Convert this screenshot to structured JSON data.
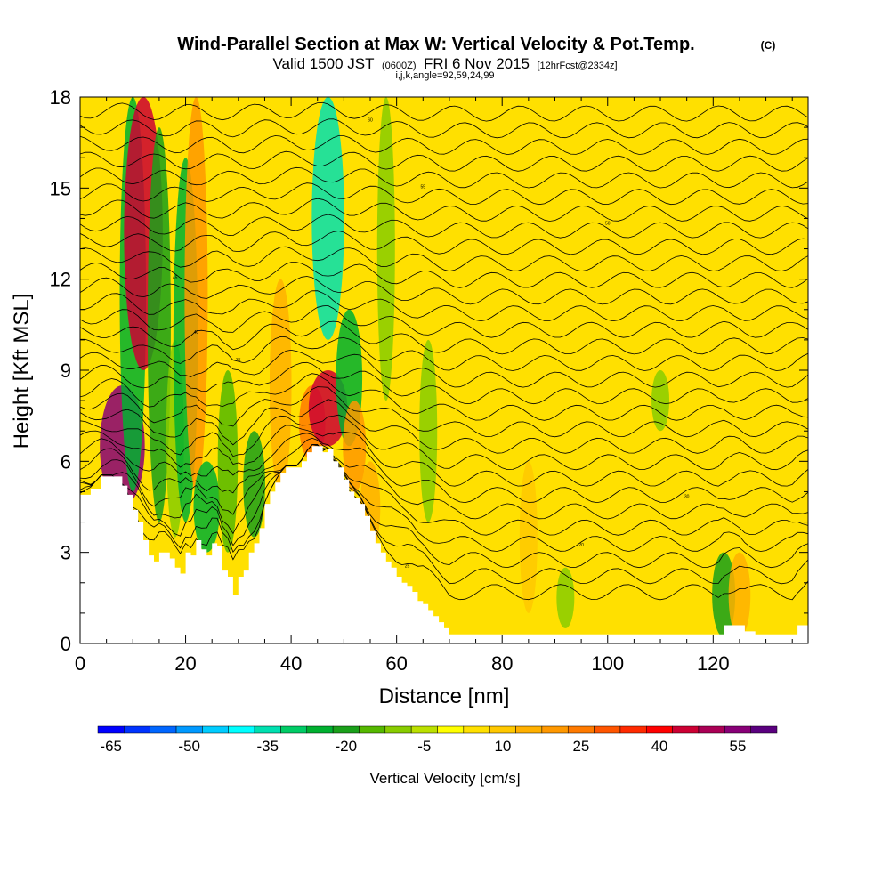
{
  "chart_data": {
    "type": "heatmap",
    "title": "Wind-Parallel Section at Max W: Vertical Velocity & Pot.Temp.",
    "title_mark": "(C)",
    "subtitle": {
      "valid_prefix": "Valid 1500 JST",
      "utc": "(0600Z)",
      "date": "FRI 6 Nov 2015",
      "fcst": "[12hrFcst@2334z]"
    },
    "params": "i,j,k,angle=92,59,24,99",
    "xlabel": "Distance [nm]",
    "ylabel": "Height [Kft MSL]",
    "xlim": [
      0,
      138
    ],
    "ylim": [
      0,
      18
    ],
    "xticks": [
      "0",
      "20",
      "40",
      "60",
      "80",
      "100",
      "120"
    ],
    "yticks": [
      "0",
      "3",
      "6",
      "9",
      "12",
      "15",
      "18"
    ],
    "colorbar": {
      "label": "Vertical Velocity [cm/s]",
      "tick_labels": [
        "-65",
        "-50",
        "-35",
        "-20",
        "-5",
        "10",
        "25",
        "40",
        "55"
      ],
      "levels": [
        -65,
        -60,
        -55,
        -50,
        -45,
        -40,
        -35,
        -30,
        -25,
        -20,
        -15,
        -10,
        -5,
        0,
        5,
        10,
        15,
        20,
        25,
        30,
        35,
        40,
        45,
        50,
        55,
        60
      ],
      "colors": [
        "#0000ff",
        "#0033ff",
        "#0066ff",
        "#0099ff",
        "#00ccff",
        "#00ffff",
        "#00e0b0",
        "#00cc66",
        "#00b030",
        "#1aa01a",
        "#55b800",
        "#88cc00",
        "#bbe000",
        "#ffff00",
        "#ffe000",
        "#ffc800",
        "#ffb000",
        "#ff9800",
        "#ff7a00",
        "#ff5500",
        "#ff2a00",
        "#ff0000",
        "#cc0033",
        "#aa0055",
        "#880077",
        "#5a007f"
      ]
    },
    "background_w": 5,
    "vertical_velocity_features": [
      {
        "x": 8,
        "zmin": 4.5,
        "zmax": 8.5,
        "w": 55
      },
      {
        "x": 10,
        "zmin": 5,
        "zmax": 18,
        "w": -25
      },
      {
        "x": 12,
        "zmin": 9,
        "zmax": 18,
        "w": 45
      },
      {
        "x": 15,
        "zmin": 4,
        "zmax": 17,
        "w": -20
      },
      {
        "x": 18,
        "zmin": 3.5,
        "zmax": 10,
        "w": -10
      },
      {
        "x": 20,
        "zmin": 4,
        "zmax": 16,
        "w": -22
      },
      {
        "x": 22,
        "zmin": 5,
        "zmax": 18,
        "w": 20
      },
      {
        "x": 24,
        "zmin": 3,
        "zmax": 6,
        "w": -25
      },
      {
        "x": 28,
        "zmin": 3,
        "zmax": 9,
        "w": -15
      },
      {
        "x": 33,
        "zmin": 3.5,
        "zmax": 7,
        "w": -18
      },
      {
        "x": 38,
        "zmin": 5,
        "zmax": 12,
        "w": 18
      },
      {
        "x": 44,
        "zmin": 6,
        "zmax": 8.5,
        "w": 25
      },
      {
        "x": 47,
        "zmin": 6.5,
        "zmax": 9,
        "w": 45
      },
      {
        "x": 47,
        "zmin": 10,
        "zmax": 18,
        "w": -35
      },
      {
        "x": 51,
        "zmin": 6.5,
        "zmax": 11,
        "w": -25
      },
      {
        "x": 52,
        "zmin": 5,
        "zmax": 8,
        "w": 20
      },
      {
        "x": 55,
        "zmin": 3,
        "zmax": 6,
        "w": 15
      },
      {
        "x": 58,
        "zmin": 8,
        "zmax": 18,
        "w": -8
      },
      {
        "x": 66,
        "zmin": 4,
        "zmax": 10,
        "w": -6
      },
      {
        "x": 85,
        "zmin": 1,
        "zmax": 6,
        "w": 10
      },
      {
        "x": 92,
        "zmin": 0.5,
        "zmax": 2.5,
        "w": -8
      },
      {
        "x": 110,
        "zmin": 7,
        "zmax": 9,
        "w": -6
      },
      {
        "x": 122,
        "zmin": 0.2,
        "zmax": 3,
        "w": -20
      },
      {
        "x": 125,
        "zmin": 0.2,
        "zmax": 3,
        "w": 18
      }
    ],
    "terrain": {
      "x": [
        0,
        2,
        4,
        6,
        8,
        9,
        10,
        11,
        12,
        13,
        14,
        15,
        16,
        17,
        18,
        19,
        20,
        21,
        22,
        23,
        24,
        25,
        26,
        27,
        28,
        29,
        30,
        31,
        32,
        33,
        34,
        35,
        36,
        37,
        38,
        39,
        40,
        41,
        42,
        43,
        44,
        45,
        46,
        47,
        48,
        49,
        50,
        51,
        52,
        53,
        54,
        55,
        56,
        57,
        58,
        59,
        60,
        61,
        62,
        63,
        64,
        65,
        66,
        67,
        68,
        69,
        70,
        75,
        80,
        90,
        100,
        110,
        118,
        120,
        121,
        122,
        124,
        125,
        126,
        128,
        130,
        132,
        134,
        135,
        136,
        138
      ],
      "z": [
        4.9,
        5.1,
        5.5,
        5.5,
        5.2,
        4.9,
        4.4,
        4.0,
        3.4,
        2.9,
        2.7,
        3.0,
        3.0,
        2.8,
        2.5,
        2.3,
        3.0,
        2.9,
        3.4,
        3.1,
        2.9,
        3.3,
        3.2,
        2.4,
        2.2,
        1.6,
        2.2,
        2.4,
        3.0,
        3.3,
        3.8,
        4.6,
        5.0,
        5.3,
        5.6,
        5.8,
        5.8,
        5.8,
        6.0,
        6.3,
        6.5,
        6.5,
        6.3,
        6.4,
        6.0,
        5.8,
        5.4,
        5.0,
        4.8,
        4.6,
        4.2,
        3.7,
        3.3,
        3.0,
        2.7,
        2.5,
        2.2,
        2.0,
        1.9,
        1.7,
        1.4,
        1.3,
        1.1,
        0.9,
        0.7,
        0.5,
        0.3,
        0.3,
        0.3,
        0.3,
        0.3,
        0.3,
        0.3,
        0.3,
        0.3,
        0.6,
        0.6,
        0.6,
        0.4,
        0.3,
        0.3,
        0.3,
        0.3,
        0.3,
        0.6,
        0.9
      ]
    },
    "theta_contour_labels": [
      "20",
      "25",
      "30",
      "35",
      "40",
      "45",
      "50",
      "55",
      "60"
    ]
  }
}
